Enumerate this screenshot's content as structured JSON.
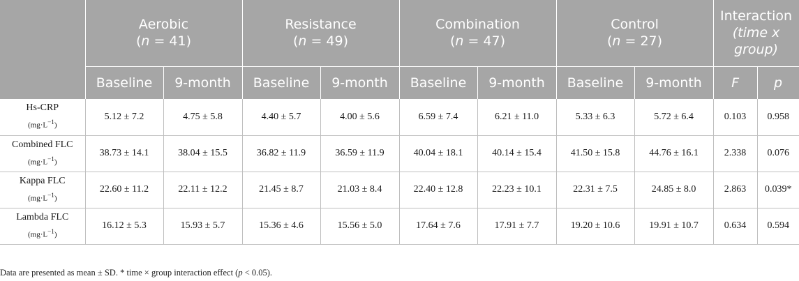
{
  "groups": [
    {
      "name": "Aerobic",
      "n_prefix": "(",
      "n_var": "n",
      "n_eq": " = 41)"
    },
    {
      "name": "Resistance",
      "n_prefix": "(",
      "n_var": "n",
      "n_eq": " = 49)"
    },
    {
      "name": "Combination",
      "n_prefix": "(",
      "n_var": "n",
      "n_eq": " = 47)"
    },
    {
      "name": "Control",
      "n_prefix": "(",
      "n_var": "n",
      "n_eq": " = 27)"
    }
  ],
  "interaction": {
    "line1": "Interaction",
    "line2": "(time x",
    "line3": "group)"
  },
  "sub_headers": {
    "baseline": "Baseline",
    "month9": "9-month",
    "f": "F",
    "p": "p"
  },
  "rows": [
    {
      "label": "Hs-CRP",
      "unit": "(mg·L",
      "unit_sup": "−1",
      "unit_close": ")",
      "values": [
        "5.12 ± 7.2",
        "4.75 ± 5.8",
        "4.40 ± 5.7",
        "4.00 ± 5.6",
        "6.59 ± 7.4",
        "6.21 ± 11.0",
        "5.33 ± 6.3",
        "5.72 ± 6.4"
      ],
      "f": "0.103",
      "p": "0.958"
    },
    {
      "label": "Combined FLC",
      "unit": "(mg·L",
      "unit_sup": "−1",
      "unit_close": ")",
      "values": [
        "38.73 ± 14.1",
        "38.04 ± 15.5",
        "36.82 ± 11.9",
        "36.59 ± 11.9",
        "40.04 ± 18.1",
        "40.14 ± 15.4",
        "41.50 ± 15.8",
        "44.76 ± 16.1"
      ],
      "f": "2.338",
      "p": "0.076"
    },
    {
      "label": "Kappa FLC",
      "unit": "(mg·L",
      "unit_sup": "−1",
      "unit_close": ")",
      "values": [
        "22.60 ± 11.2",
        "22.11 ± 12.2",
        "21.45 ± 8.7",
        "21.03 ± 8.4",
        "22.40 ± 12.8",
        "22.23 ± 10.1",
        "22.31 ± 7.5",
        "24.85 ± 8.0"
      ],
      "f": "2.863",
      "p": "0.039*"
    },
    {
      "label": "Lambda FLC",
      "unit": "(mg·L",
      "unit_sup": "−1",
      "unit_close": ")",
      "values": [
        "16.12 ± 5.3",
        "15.93 ± 5.7",
        "15.36 ± 4.6",
        "15.56 ± 5.0",
        "17.64 ± 7.6",
        "17.91 ± 7.7",
        "19.20 ± 10.6",
        "19.91 ± 10.7"
      ],
      "f": "0.634",
      "p": "0.594"
    }
  ],
  "footnote": {
    "part1": "Data are presented as mean ± SD. * time × group interaction effect (",
    "pvar": "p",
    "part2": " < 0.05)."
  }
}
